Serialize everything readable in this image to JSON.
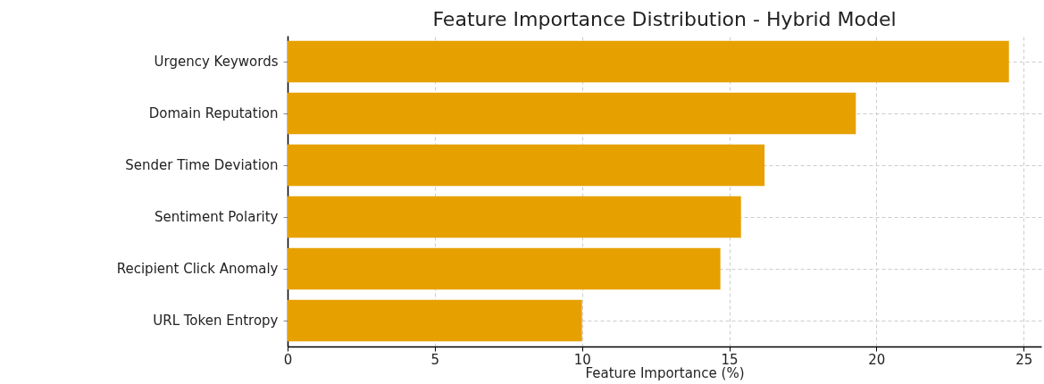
{
  "chart_data": {
    "type": "bar",
    "orientation": "horizontal",
    "title": "Feature Importance Distribution - Hybrid Model",
    "xlabel": "Feature Importance (%)",
    "categories": [
      "Urgency Keywords",
      "Domain Reputation",
      "Sender Time Deviation",
      "Sentiment Polarity",
      "Recipient Click Anomaly",
      "URL Token Entropy"
    ],
    "values": [
      24.5,
      19.3,
      16.2,
      15.4,
      14.7,
      10.0
    ],
    "color": "#e6a100",
    "xlim": [
      0,
      25.6
    ],
    "xticks": [
      0,
      5,
      10,
      15,
      20,
      25
    ],
    "grid": true
  }
}
